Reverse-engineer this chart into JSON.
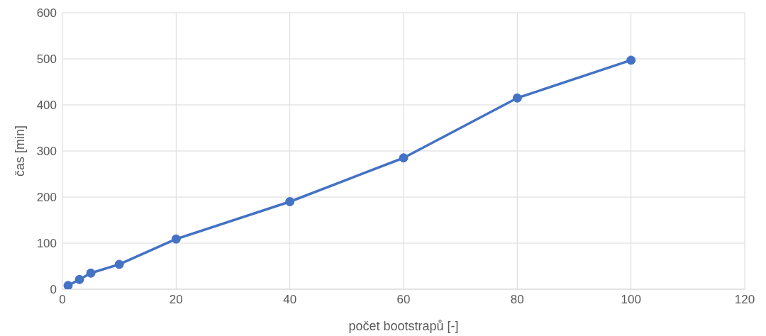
{
  "chart_data": {
    "type": "line",
    "xlabel": "počet bootstrapů [-]",
    "ylabel": "čas [min]",
    "x": [
      1,
      3,
      5,
      10,
      20,
      40,
      60,
      80,
      100
    ],
    "series": [
      {
        "color": "#4472c4",
        "values": [
          8,
          21,
          35,
          54,
          109,
          190,
          285,
          415,
          497
        ]
      }
    ],
    "xlim": [
      0,
      120
    ],
    "xticks": [
      0,
      20,
      40,
      60,
      80,
      100,
      120
    ],
    "ylim": [
      0,
      600
    ],
    "yticks": [
      0,
      100,
      200,
      300,
      400,
      500,
      600
    ],
    "grid": true,
    "legend": false,
    "marker": "circle",
    "line_style": "solid"
  }
}
